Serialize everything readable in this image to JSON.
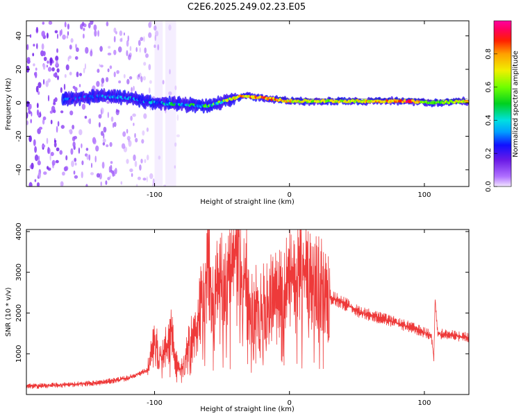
{
  "page": {
    "title": "C2E6.2025.249.02.23.E05"
  },
  "chart_data": [
    {
      "type": "heatmap",
      "xlabel": "Height of straight line (km)",
      "ylabel": "Frequency (Hz)",
      "xlim": [
        -195,
        133
      ],
      "ylim": [
        -50,
        49
      ],
      "xticks": [
        -100,
        0,
        100
      ],
      "yticks": [
        -40,
        -20,
        0,
        20,
        40
      ],
      "grid": false,
      "colorbar": {
        "label": "Normalized spectral amplitude",
        "range": [
          0.0,
          1.0
        ],
        "ticks": [
          0.0,
          0.2,
          0.4,
          0.6,
          0.8
        ],
        "colormap": "rainbow (violet-blue-cyan-green-yellow-red-magenta)"
      },
      "ridge": {
        "x": [
          -165,
          -140,
          -120,
          -100,
          -80,
          -60,
          -45,
          -35,
          -20,
          0,
          20,
          50,
          90,
          105,
          133
        ],
        "frequency": [
          2,
          4,
          3,
          0,
          -1,
          -2,
          2,
          4,
          3,
          1,
          1,
          1,
          1,
          0,
          1
        ],
        "amplitude": [
          0.3,
          0.35,
          0.4,
          0.45,
          0.55,
          0.6,
          0.75,
          0.85,
          0.9,
          0.8,
          0.7,
          0.75,
          0.95,
          0.6,
          0.8
        ]
      },
      "noise_region": {
        "x": [
          -195,
          -80
        ],
        "frequency": [
          -50,
          49
        ]
      }
    },
    {
      "type": "line",
      "color": "#ee3a3a",
      "xlabel": "Height of straight line (km)",
      "ylabel": "SNR (10 * v/v)",
      "xlim": [
        -195,
        133
      ],
      "ylim": [
        0,
        4050
      ],
      "xticks": [
        -100,
        0,
        100
      ],
      "yticks": [
        1000,
        2000,
        3000,
        4000
      ],
      "grid": false,
      "series": [
        {
          "name": "SNR",
          "x": [
            -195,
            -170,
            -140,
            -120,
            -105,
            -100,
            -95,
            -90,
            -87,
            -85,
            -80,
            -75,
            -70,
            -65,
            -60,
            -57,
            -55,
            -50,
            -45,
            -40,
            -37,
            -35,
            -32,
            -30,
            -25,
            -20,
            -15,
            -10,
            -5,
            0,
            5,
            8,
            12,
            16,
            20,
            25,
            28,
            30,
            40,
            50,
            60,
            70,
            80,
            90,
            100,
            105,
            107,
            108,
            110,
            120,
            133
          ],
          "y": [
            200,
            230,
            290,
            400,
            600,
            1300,
            900,
            1300,
            1600,
            800,
            600,
            1200,
            1500,
            2400,
            3300,
            2200,
            2600,
            2800,
            3000,
            3400,
            4000,
            2600,
            3100,
            2000,
            2300,
            2200,
            2400,
            2600,
            2500,
            2900,
            2600,
            3300,
            2900,
            2700,
            2750,
            2800,
            2600,
            2400,
            2250,
            2050,
            1950,
            1850,
            1750,
            1650,
            1520,
            1450,
            900,
            2350,
            1500,
            1450,
            1400
          ],
          "spread_annotation": "high-variance signal between -100 and +30 km"
        }
      ]
    }
  ]
}
